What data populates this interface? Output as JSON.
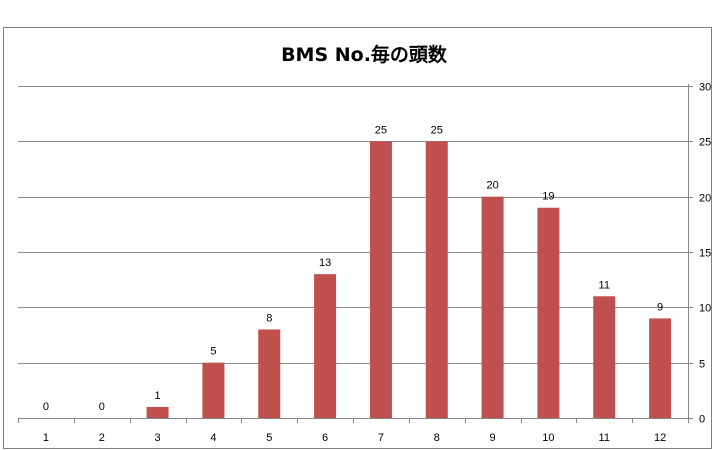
{
  "chart_data": {
    "type": "bar",
    "title": "BMS No.毎の頭数",
    "xlabel": "",
    "ylabel": "",
    "categories": [
      "1",
      "2",
      "3",
      "4",
      "5",
      "6",
      "7",
      "8",
      "9",
      "10",
      "11",
      "12"
    ],
    "values": [
      0,
      0,
      1,
      5,
      8,
      13,
      25,
      25,
      20,
      19,
      11,
      9
    ],
    "ylim": [
      0,
      30
    ],
    "yticks": [
      0,
      5,
      10,
      15,
      20,
      25,
      30
    ],
    "y_axis_side": "right",
    "grid": true,
    "data_labels": true,
    "legend": "none",
    "bar_color": "#C0504D",
    "grid_color": "#8C8C8C",
    "axis_color": "#868686"
  }
}
